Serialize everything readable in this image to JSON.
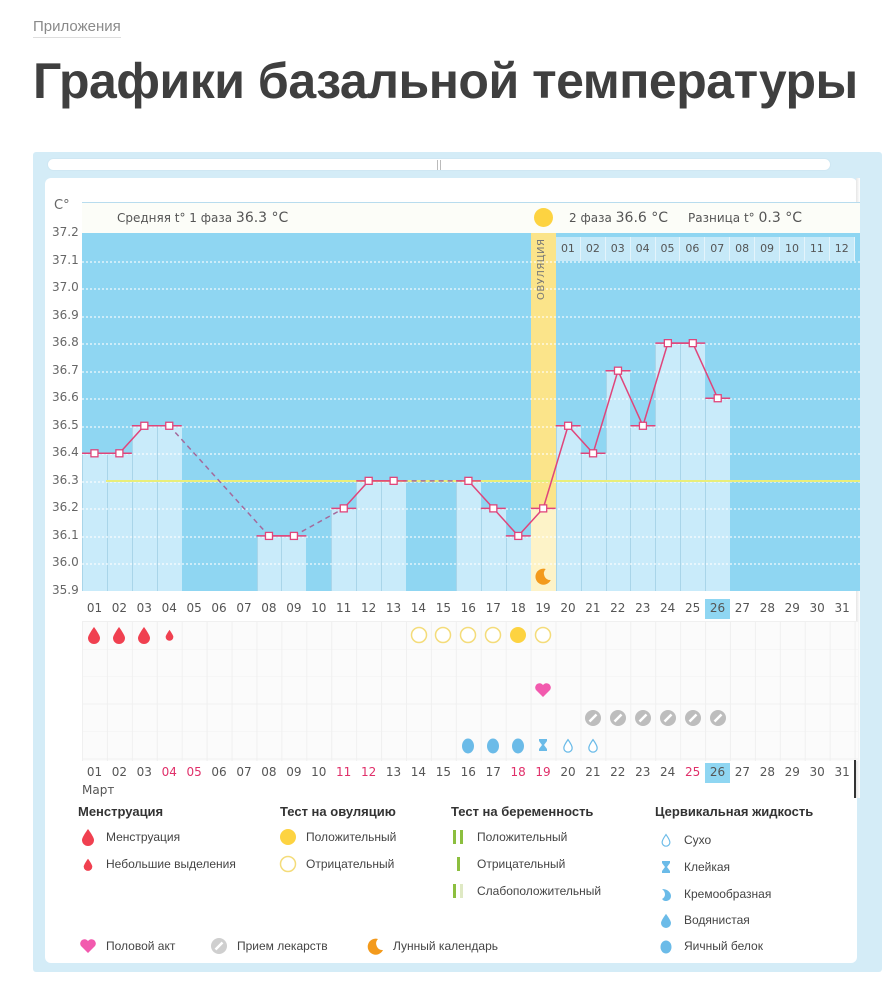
{
  "breadcrumb": "Приложения",
  "page_title": "Графики базальной температуры",
  "chart_header": {
    "unit": "C°",
    "phase1_label": "Средняя t° 1 фаза",
    "phase1_value": "36.3 °C",
    "phase2_label": "2 фаза",
    "phase2_value": "36.6 °C",
    "diff_label": "Разница t°",
    "diff_value": "0.3 °C",
    "ovulation_label": "ОВУЛЯЦИЯ"
  },
  "cycle_days": [
    "01",
    "02",
    "03",
    "04",
    "05",
    "06",
    "07",
    "08",
    "09",
    "10",
    "11",
    "12"
  ],
  "month_label": "Март",
  "today": "26",
  "chart_data": {
    "type": "line",
    "title": "Графики базальной температуры",
    "xlabel": "Март",
    "ylabel": "C°",
    "ylim": [
      35.9,
      37.2
    ],
    "yticks": [
      "37.2",
      "37.1",
      "37.0",
      "36.9",
      "36.8",
      "36.7",
      "36.6",
      "36.5",
      "36.4",
      "36.3",
      "36.2",
      "36.1",
      "36.0",
      "35.9"
    ],
    "categories": [
      "01",
      "02",
      "03",
      "04",
      "05",
      "06",
      "07",
      "08",
      "09",
      "10",
      "11",
      "12",
      "13",
      "14",
      "15",
      "16",
      "17",
      "18",
      "19",
      "20",
      "21",
      "22",
      "23",
      "24",
      "25",
      "26",
      "27",
      "28",
      "29",
      "30",
      "31"
    ],
    "series": [
      {
        "name": "Базальная температура",
        "values": [
          36.4,
          36.4,
          36.5,
          36.5,
          null,
          null,
          null,
          36.1,
          36.1,
          null,
          36.2,
          36.3,
          36.3,
          null,
          null,
          36.3,
          36.2,
          36.1,
          36.2,
          36.5,
          36.4,
          36.7,
          36.5,
          36.8,
          36.8,
          36.6,
          null,
          null,
          null,
          null,
          null
        ]
      }
    ],
    "coverline": 36.3,
    "phase1_avg": 36.3,
    "phase2_avg": 36.6,
    "ovulation_day": "19",
    "grid": true,
    "legend_position": "bottom"
  },
  "red_days_bottom": [
    "04",
    "05",
    "11",
    "12",
    "18",
    "19",
    "25"
  ],
  "marks": {
    "menstruation": [
      {
        "day": "01",
        "size": "large"
      },
      {
        "day": "02",
        "size": "large"
      },
      {
        "day": "03",
        "size": "large"
      },
      {
        "day": "04",
        "size": "small"
      }
    ],
    "ovulation_test": [
      {
        "day": "14",
        "result": "negative"
      },
      {
        "day": "15",
        "result": "negative"
      },
      {
        "day": "16",
        "result": "negative"
      },
      {
        "day": "17",
        "result": "negative"
      },
      {
        "day": "18",
        "result": "positive"
      },
      {
        "day": "19",
        "result": "negative"
      }
    ],
    "intercourse": [
      "19"
    ],
    "medication": [
      "21",
      "22",
      "23",
      "24",
      "25",
      "26"
    ],
    "cervical_fluid": [
      {
        "day": "16",
        "type": "egg-white"
      },
      {
        "day": "17",
        "type": "egg-white"
      },
      {
        "day": "18",
        "type": "egg-white"
      },
      {
        "day": "19",
        "type": "sticky"
      },
      {
        "day": "20",
        "type": "dry"
      },
      {
        "day": "21",
        "type": "dry"
      }
    ],
    "moon_day": "19"
  },
  "legend": {
    "menstruation": {
      "title": "Менструация",
      "items": [
        "Менструация",
        "Небольшие выделения"
      ]
    },
    "ovulation_test": {
      "title": "Тест на овуляцию",
      "items": [
        "Положительный",
        "Отрицательный"
      ]
    },
    "pregnancy_test": {
      "title": "Тест на беременность",
      "items": [
        "Положительный",
        "Отрицательный",
        "Слабоположительный"
      ]
    },
    "cervical_fluid": {
      "title": "Цервикальная жидкость",
      "items": [
        "Сухо",
        "Клейкая",
        "Кремообразная",
        "Водянистая",
        "Яичный белок"
      ]
    },
    "other": [
      "Половой акт",
      "Прием лекарств",
      "Лунный календарь"
    ]
  },
  "colors": {
    "plot_bg": "#8fd6f2",
    "bar": "#c9ebfa",
    "line": "#e0457b",
    "ovulation": "#fbe48a",
    "coverline": "#e9ee7a",
    "blood": "#f04050",
    "ovu_positive": "#fdd341",
    "heart": "#f25aae",
    "pill": "#bdbdbd",
    "fluid": "#6bbbe8",
    "moon": "#f39a1c",
    "preg_test": "#8cbf3f"
  }
}
